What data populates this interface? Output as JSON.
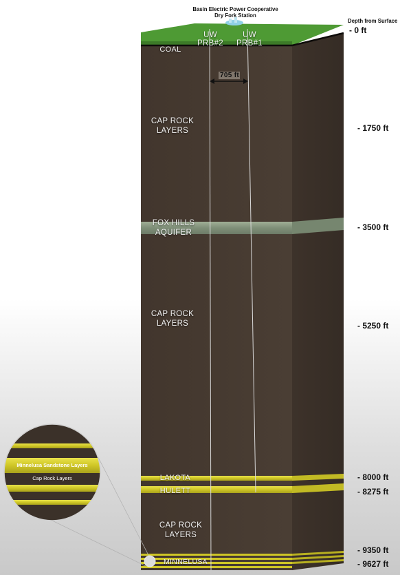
{
  "header": {
    "station_line1": "Basin Electric Power Cooperative",
    "station_line2": "Dry Fork Station",
    "depth_title": "Depth from Surface"
  },
  "wells": [
    {
      "line1": "UW",
      "line2": "PRB#2"
    },
    {
      "line1": "UW",
      "line2": "PRB#1"
    }
  ],
  "spacing_label": "705 ft",
  "layers": {
    "coal": "COAL",
    "cap_rock_1": [
      "CAP ROCK",
      "LAYERS"
    ],
    "fox_hills": [
      "FOX HILLS",
      "AQUIFER"
    ],
    "cap_rock_2": [
      "CAP ROCK",
      "LAYERS"
    ],
    "lakota": "LAKOTA",
    "hulett": "HULETT",
    "cap_rock_3": [
      "CAP ROCK",
      "LAYERS"
    ],
    "minnelusa": "MINNELUSA"
  },
  "depths": [
    "- 0 ft",
    "- 1750 ft",
    "- 3500 ft",
    "- 5250 ft",
    "- 8000 ft",
    "- 8275 ft",
    "- 9350 ft",
    "- 9627 ft"
  ],
  "inset": {
    "sandstone_label": "Minnelusa Sandstone Layers",
    "cap_rock_label": "Cap Rock Layers"
  },
  "colors": {
    "rock": "#463a31",
    "rock_side": "#3c322a",
    "surface": "#4e9a34",
    "sand": "#d8d030",
    "aquifer": "#8b9a83"
  }
}
